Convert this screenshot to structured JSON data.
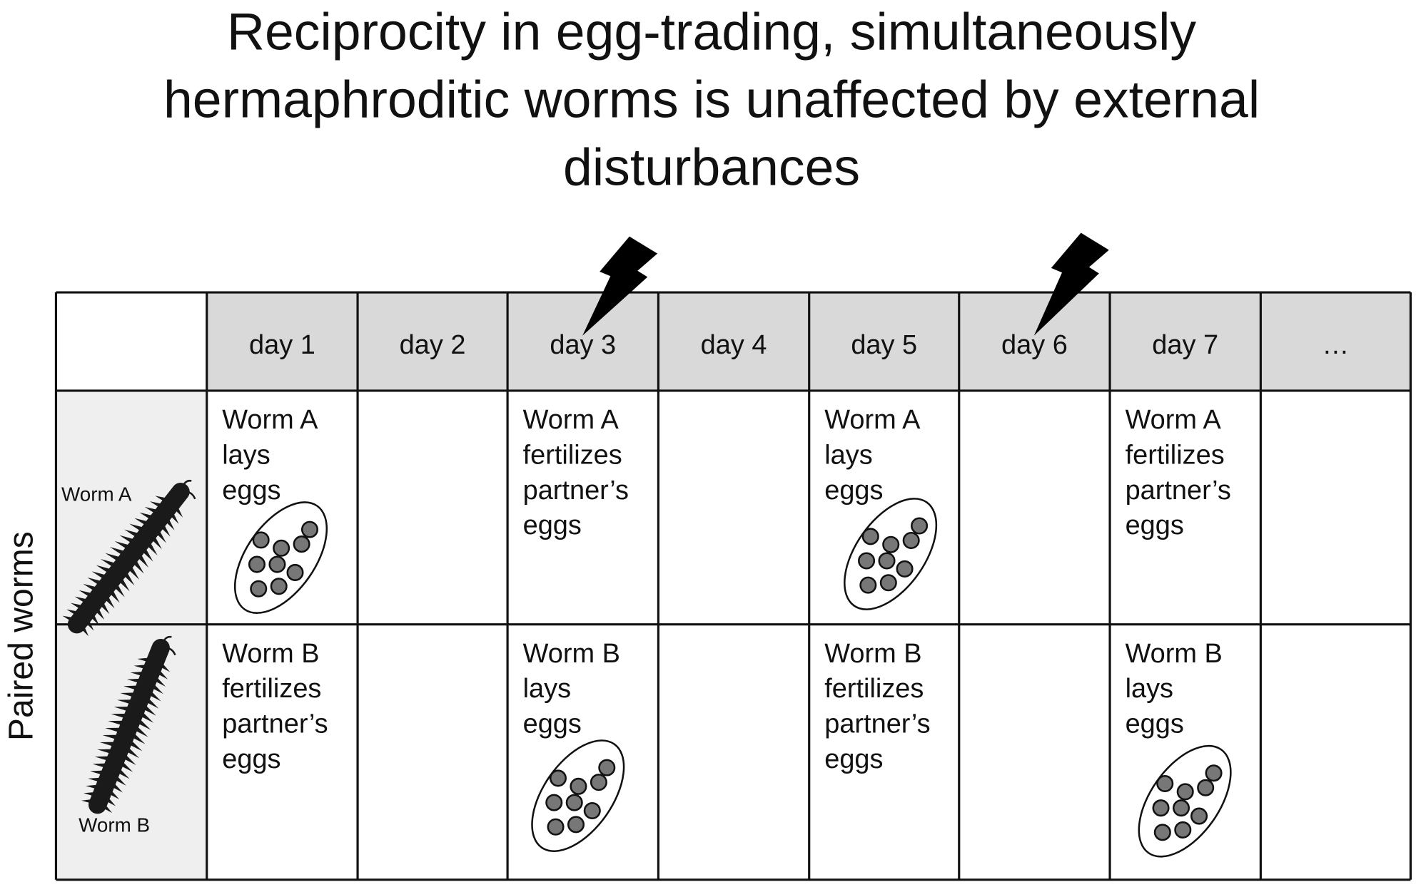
{
  "title": [
    "Reciprocity in egg-trading, simultaneously",
    "hermaphroditic worms is unaffected by external",
    "disturbances"
  ],
  "y_label": "Paired worms",
  "worm_labels": [
    "Worm A",
    "Worm B"
  ],
  "days": [
    "day 1",
    "day 2",
    "day 3",
    "day 4",
    "day 5",
    "day 6",
    "day 7",
    "…"
  ],
  "rows": [
    [
      [
        "Worm A",
        "lays",
        "eggs"
      ],
      null,
      [
        "Worm A",
        "fertilizes",
        "partner’s",
        "eggs"
      ],
      null,
      [
        "Worm A",
        "lays",
        "eggs"
      ],
      null,
      [
        "Worm A",
        "fertilizes",
        "partner’s",
        "eggs"
      ],
      null
    ],
    [
      [
        "Worm B",
        "fertilizes",
        "partner’s",
        "eggs"
      ],
      null,
      [
        "Worm B",
        "lays",
        "eggs"
      ],
      null,
      [
        "Worm B",
        "fertilizes",
        "partner’s",
        "eggs"
      ],
      null,
      [
        "Worm B",
        "lays",
        "eggs"
      ],
      null
    ]
  ]
}
